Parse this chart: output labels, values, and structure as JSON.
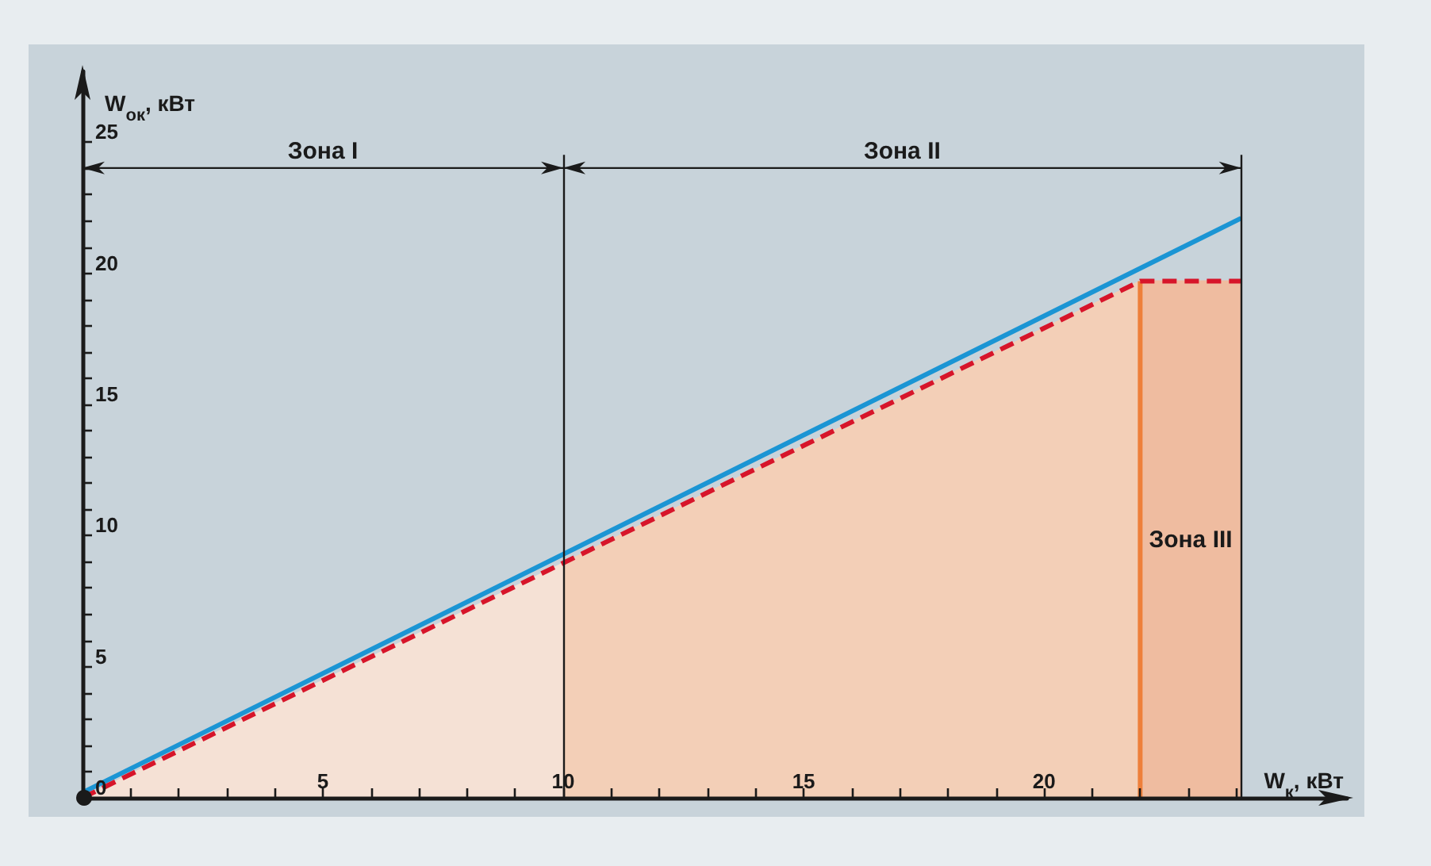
{
  "chart_data": {
    "type": "line",
    "xlabel": "W$_{к}$, кВт",
    "ylabel": "W$_{ок}$, кВт",
    "xlim": [
      0,
      26.3
    ],
    "ylim": [
      0,
      27.7
    ],
    "xticks": [
      {
        "value": 0,
        "label": null
      },
      {
        "value": 1,
        "label": null
      },
      {
        "value": 2,
        "label": null
      },
      {
        "value": 3,
        "label": null
      },
      {
        "value": 4,
        "label": null
      },
      5,
      {
        "value": 6,
        "label": null
      },
      {
        "value": 7,
        "label": null
      },
      {
        "value": 8,
        "label": null
      },
      {
        "value": 9,
        "label": null
      },
      10,
      {
        "value": 11,
        "label": null
      },
      {
        "value": 12,
        "label": null
      },
      {
        "value": 13,
        "label": null
      },
      {
        "value": 14,
        "label": null
      },
      15,
      {
        "value": 16,
        "label": null
      },
      {
        "value": 17,
        "label": null
      },
      {
        "value": 18,
        "label": null
      },
      {
        "value": 19,
        "label": null
      },
      20,
      {
        "value": 21,
        "label": null
      },
      {
        "value": 22,
        "label": null
      },
      {
        "value": 23,
        "label": null
      },
      {
        "value": 24,
        "label": null
      }
    ],
    "yticks": [
      0,
      {
        "value": 1,
        "label": null
      },
      {
        "value": 2,
        "label": null
      },
      {
        "value": 3,
        "label": null
      },
      {
        "value": 4,
        "label": null
      },
      5,
      {
        "value": 6,
        "label": null
      },
      {
        "value": 7,
        "label": null
      },
      {
        "value": 8,
        "label": null
      },
      {
        "value": 9,
        "label": null
      },
      10,
      {
        "value": 11,
        "label": null
      },
      {
        "value": 12,
        "label": null
      },
      {
        "value": 13,
        "label": null
      },
      {
        "value": 14,
        "label": null
      },
      15,
      {
        "value": 16,
        "label": null
      },
      {
        "value": 17,
        "label": null
      },
      {
        "value": 18,
        "label": null
      },
      {
        "value": 19,
        "label": null
      },
      20,
      {
        "value": 21,
        "label": null
      },
      {
        "value": 22,
        "label": null
      },
      {
        "value": 23,
        "label": null
      },
      {
        "value": 24,
        "label": null
      },
      25
    ],
    "series": [
      {
        "type": "area",
        "color": "#f5e1d5",
        "x": [
          0,
          10
        ],
        "values": [
          0,
          8.95
        ]
      },
      {
        "type": "area",
        "color": "#f3cfb7",
        "x": [
          10,
          22
        ],
        "values": [
          8.95,
          19.7
        ]
      },
      {
        "type": "area",
        "color": "#efbca0",
        "x": [
          22,
          24.1
        ],
        "values": [
          19.7,
          19.7
        ]
      },
      {
        "type": "line",
        "color": "#ee7f3a",
        "x": [
          22,
          22
        ],
        "values": [
          0,
          19.7
        ]
      },
      {
        "color": "#1b95d4",
        "x": [
          0,
          24.1
        ],
        "values": [
          0.2,
          22.1
        ]
      },
      {
        "color": "#d7152a",
        "line_style": "dashed",
        "x": [
          0,
          22,
          24.1
        ],
        "values": [
          0,
          19.7,
          19.7
        ]
      }
    ],
    "ref_lines": [
      {
        "axis": "x",
        "value": 10
      },
      {
        "axis": "x",
        "value": 24.1
      }
    ],
    "annotations": [
      "Зона I",
      "Зона II",
      "Зона III"
    ]
  }
}
